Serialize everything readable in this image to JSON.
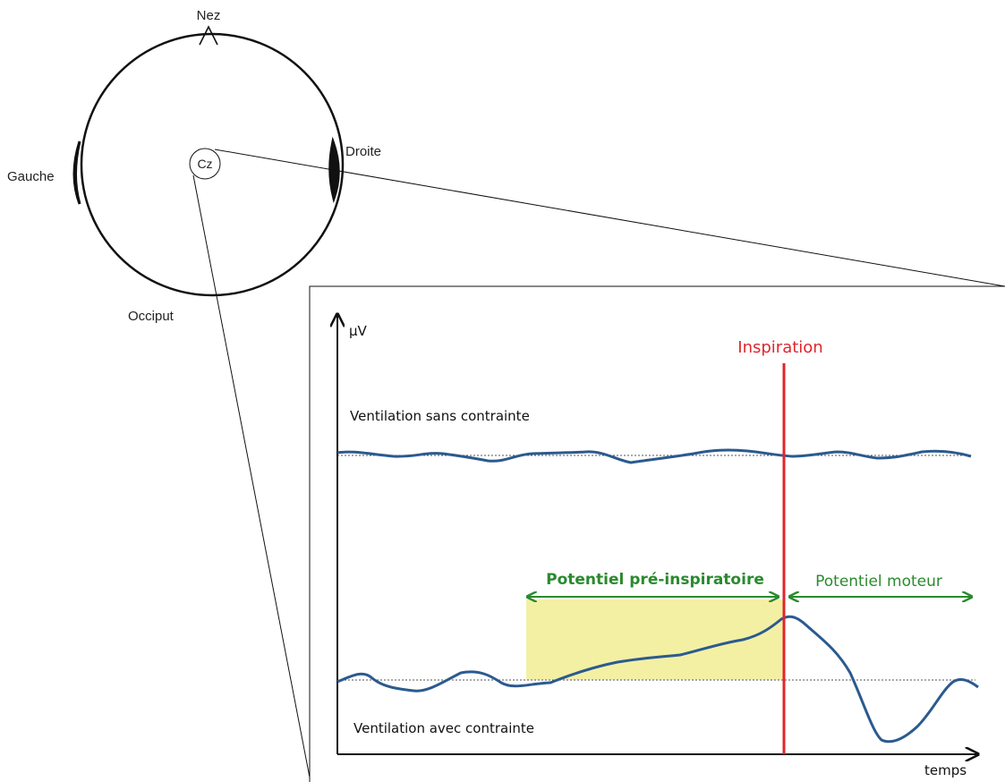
{
  "head": {
    "nose_label": "Nez",
    "left_label": "Gauche",
    "right_label": "Droite",
    "back_label": "Occiput",
    "electrode_label": "Cz"
  },
  "panel": {
    "y_axis_label": "µV",
    "x_axis_label": "temps",
    "inspiration_label": "Inspiration",
    "trace_top_label": "Ventilation sans contrainte",
    "trace_bottom_label": "Ventilation avec contrainte",
    "pre_potential_label": "Potentiel pré-inspiratoire",
    "motor_potential_label": "Potentiel moteur"
  },
  "colors": {
    "trace": "#2b5a8f",
    "inspiration": "#e0262b",
    "potential": "#2a8a2e",
    "highlight": "#f3f0a4",
    "outline": "#111111"
  }
}
